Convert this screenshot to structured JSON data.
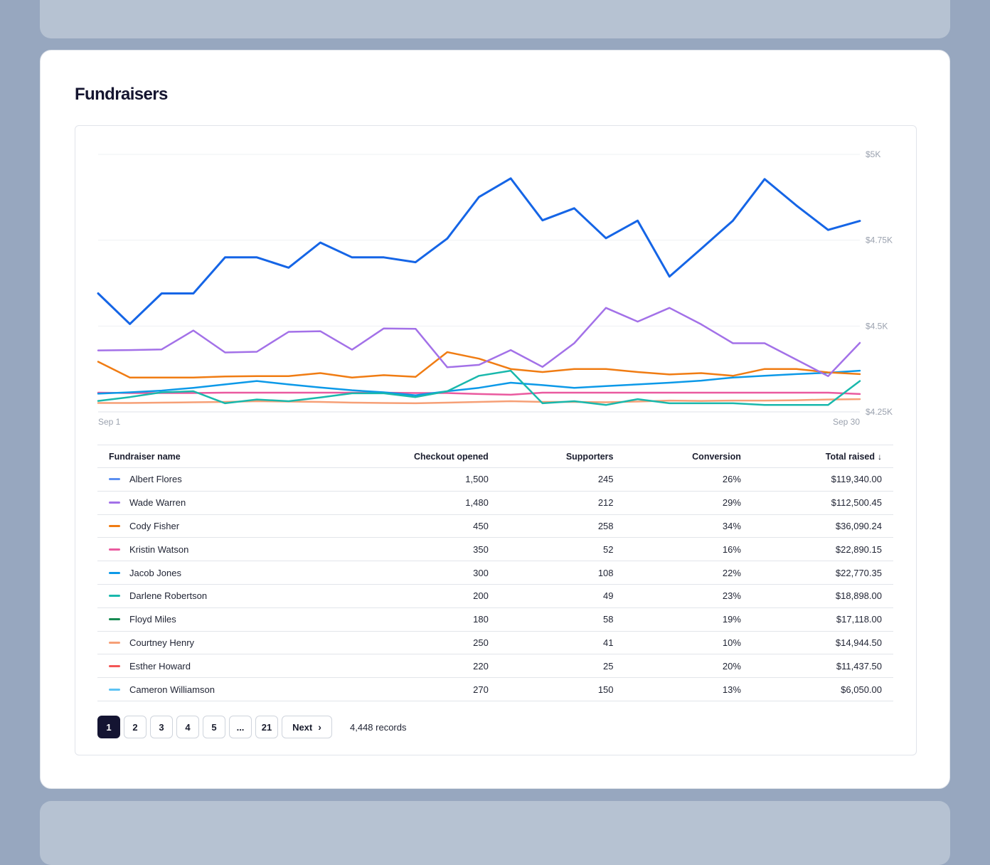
{
  "page": {
    "title": "Fundraisers"
  },
  "chart_data": {
    "type": "line",
    "x_labels": [
      "Sep 1",
      "Sep 30"
    ],
    "y_ticks": [
      "$5K",
      "$4.75K",
      "$4.5K",
      "$4.25K"
    ],
    "ylim": [
      4250,
      5000
    ],
    "x_count": 25,
    "series": [
      {
        "name": "Albert Flores",
        "color": "#1565e6",
        "values": [
          4595,
          4506,
          4595,
          4595,
          4700,
          4700,
          4670,
          4743,
          4700,
          4700,
          4686,
          4755,
          4876,
          4930,
          4808,
          4843,
          4756,
          4807,
          4644,
          4725,
          4807,
          4928,
          4851,
          4780,
          4806
        ]
      },
      {
        "name": "Wade Warren",
        "color": "#a371e8",
        "values": [
          4429,
          4430,
          4432,
          4487,
          4423,
          4425,
          4483,
          4485,
          4431,
          4493,
          4492,
          4380,
          4387,
          4430,
          4381,
          4450,
          4553,
          4513,
          4553,
          4505,
          4450,
          4450,
          4402,
          4354,
          4451
        ]
      },
      {
        "name": "Cody Fisher",
        "color": "#f07c13",
        "values": [
          4396,
          4350,
          4350,
          4350,
          4353,
          4354,
          4354,
          4363,
          4350,
          4357,
          4352,
          4424,
          4405,
          4375,
          4366,
          4375,
          4375,
          4366,
          4359,
          4363,
          4355,
          4375,
          4375,
          4365,
          4360
        ]
      },
      {
        "name": "Kristin Watson",
        "color": "#ea5a9f",
        "values": [
          4306,
          4305,
          4305,
          4305,
          4306,
          4306,
          4306,
          4306,
          4306,
          4306,
          4305,
          4305,
          4302,
          4300,
          4306,
          4306,
          4306,
          4306,
          4306,
          4306,
          4306,
          4306,
          4306,
          4306,
          4302
        ]
      },
      {
        "name": "Jacob Jones",
        "color": "#0c99e8",
        "values": [
          4303,
          4307,
          4312,
          4320,
          4330,
          4340,
          4330,
          4321,
          4313,
          4307,
          4298,
          4310,
          4320,
          4335,
          4328,
          4320,
          4325,
          4330,
          4335,
          4341,
          4350,
          4355,
          4360,
          4364,
          4370
        ]
      },
      {
        "name": "Darlene Robertson",
        "color": "#19b8ac",
        "values": [
          4282,
          4293,
          4307,
          4310,
          4275,
          4286,
          4281,
          4292,
          4304,
          4304,
          4293,
          4310,
          4355,
          4370,
          4275,
          4281,
          4270,
          4287,
          4275,
          4275,
          4275,
          4270,
          4270,
          4270,
          4340
        ]
      },
      {
        "name": "Floyd Miles",
        "color": "#178a52",
        "values": []
      },
      {
        "name": "Courtney Henry",
        "color": "#f6a077",
        "values": [
          4276,
          4276,
          4277,
          4278,
          4279,
          4281,
          4280,
          4279,
          4277,
          4276,
          4275,
          4277,
          4279,
          4281,
          4279,
          4279,
          4278,
          4280,
          4283,
          4282,
          4283,
          4283,
          4284,
          4286,
          4287
        ]
      },
      {
        "name": "Esther Howard",
        "color": "#f45656",
        "values": []
      },
      {
        "name": "Cameron Williamson",
        "color": "#5cc3f4",
        "values": []
      }
    ],
    "grid": true
  },
  "table": {
    "headers": {
      "name": "Fundraiser name",
      "checkout": "Checkout opened",
      "supporters": "Supporters",
      "conversion": "Conversion",
      "total": "Total raised",
      "sort_icon": "↓"
    },
    "rows": [
      {
        "name": "Albert Flores",
        "color": "#5b8ff0",
        "checkout": "1,500",
        "supporters": "245",
        "conversion": "26%",
        "total": "$119,340.00"
      },
      {
        "name": "Wade Warren",
        "color": "#a371e8",
        "checkout": "1,480",
        "supporters": "212",
        "conversion": "29%",
        "total": "$112,500.45"
      },
      {
        "name": "Cody Fisher",
        "color": "#f07c13",
        "checkout": "450",
        "supporters": "258",
        "conversion": "34%",
        "total": "$36,090.24"
      },
      {
        "name": "Kristin Watson",
        "color": "#ea5a9f",
        "checkout": "350",
        "supporters": "52",
        "conversion": "16%",
        "total": "$22,890.15"
      },
      {
        "name": "Jacob Jones",
        "color": "#0c99e8",
        "checkout": "300",
        "supporters": "108",
        "conversion": "22%",
        "total": "$22,770.35"
      },
      {
        "name": "Darlene Robertson",
        "color": "#19b8ac",
        "checkout": "200",
        "supporters": "49",
        "conversion": "23%",
        "total": "$18,898.00"
      },
      {
        "name": "Floyd Miles",
        "color": "#178a52",
        "checkout": "180",
        "supporters": "58",
        "conversion": "19%",
        "total": "$17,118.00"
      },
      {
        "name": "Courtney Henry",
        "color": "#f6a077",
        "checkout": "250",
        "supporters": "41",
        "conversion": "10%",
        "total": "$14,944.50"
      },
      {
        "name": "Esther Howard",
        "color": "#f45656",
        "checkout": "220",
        "supporters": "25",
        "conversion": "20%",
        "total": "$11,437.50"
      },
      {
        "name": "Cameron Williamson",
        "color": "#5cc3f4",
        "checkout": "270",
        "supporters": "150",
        "conversion": "13%",
        "total": "$6,050.00"
      }
    ]
  },
  "pagination": {
    "pages": [
      "1",
      "2",
      "3",
      "4",
      "5",
      "...",
      "21"
    ],
    "current": "1",
    "next_label": "Next",
    "next_icon": "chevron-right-icon",
    "records": "4,448 records"
  }
}
